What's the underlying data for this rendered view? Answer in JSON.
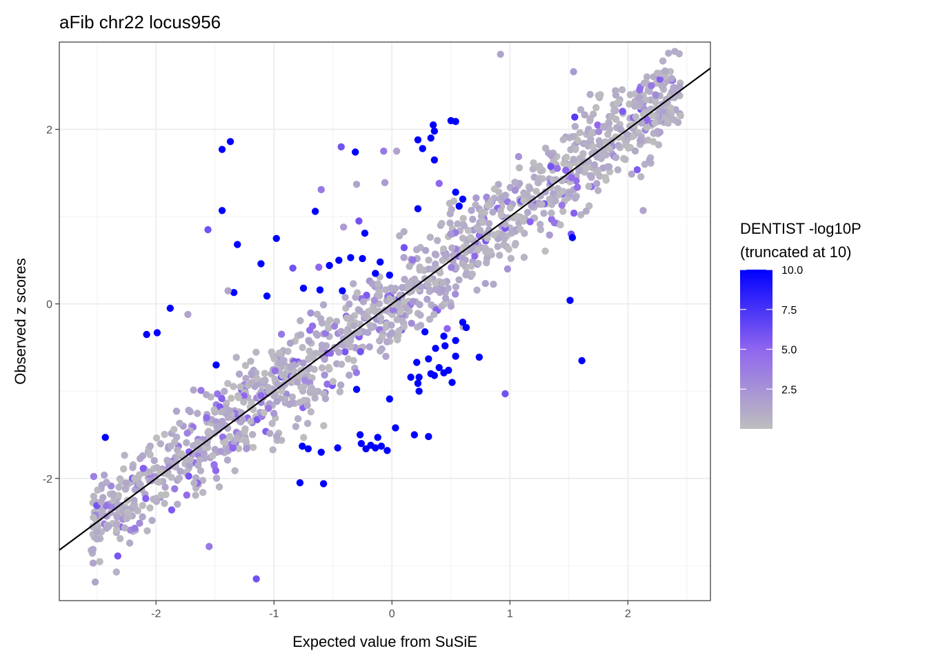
{
  "chart_data": {
    "type": "scatter",
    "title": "aFib chr22 locus956",
    "xlabel": "Expected value from SuSiE",
    "ylabel": "Observed z scores",
    "xlim": [
      -2.82,
      2.7
    ],
    "ylim": [
      -3.4,
      3.0
    ],
    "x_ticks": [
      -2,
      -1,
      0,
      1,
      2
    ],
    "x_tick_labels": [
      "-2",
      "-1",
      "0",
      "1",
      "2"
    ],
    "y_ticks": [
      -2,
      0,
      2
    ],
    "y_tick_labels": [
      "-2",
      "0",
      "2"
    ],
    "grid": true,
    "reference_line": {
      "intercept": 0,
      "slope": 1,
      "color": "#000000"
    },
    "legend": {
      "title_line1": "DENTIST -log10P",
      "title_line2": "(truncated at 10)",
      "labels": [
        "10.0",
        "7.5",
        "5.0",
        "2.5"
      ],
      "values": [
        10.0,
        7.5,
        5.0,
        2.5
      ],
      "range": [
        0,
        10
      ],
      "low_color": "#bebebe",
      "high_color": "#0000ff",
      "placement": "right"
    },
    "bulk_points": {
      "description": "dense cloud along the diagonal, mostly grey with low DENTIST values",
      "count": 1400,
      "x_range": [
        -2.55,
        2.45
      ],
      "slope": 1.0,
      "spread_sd": 0.26
    },
    "highlighted_points": [
      {
        "x": 0.92,
        "y": 2.86,
        "p": 1.5
      },
      {
        "x": 1.54,
        "y": 2.66,
        "p": 2.0
      },
      {
        "x": 2.2,
        "y": 2.5,
        "p": 4.0
      },
      {
        "x": 1.68,
        "y": 2.4,
        "p": 1.0
      },
      {
        "x": 1.55,
        "y": 2.14,
        "p": 7.0
      },
      {
        "x": 0.5,
        "y": 2.1,
        "p": 10.0
      },
      {
        "x": 0.54,
        "y": 2.09,
        "p": 10.0
      },
      {
        "x": 0.35,
        "y": 2.05,
        "p": 10.0
      },
      {
        "x": 0.36,
        "y": 1.98,
        "p": 10.0
      },
      {
        "x": 0.22,
        "y": 1.88,
        "p": 10.0
      },
      {
        "x": 0.33,
        "y": 1.9,
        "p": 10.0
      },
      {
        "x": 0.26,
        "y": 1.78,
        "p": 10.0
      },
      {
        "x": -1.37,
        "y": 1.86,
        "p": 10.0
      },
      {
        "x": -1.44,
        "y": 1.77,
        "p": 10.0
      },
      {
        "x": -0.43,
        "y": 1.8,
        "p": 6.0
      },
      {
        "x": -0.31,
        "y": 1.74,
        "p": 10.0
      },
      {
        "x": -0.07,
        "y": 1.75,
        "p": 4.0
      },
      {
        "x": 0.04,
        "y": 1.75,
        "p": 1.5
      },
      {
        "x": 0.36,
        "y": 1.65,
        "p": 10.0
      },
      {
        "x": 1.35,
        "y": 1.7,
        "p": 1.5
      },
      {
        "x": -0.06,
        "y": 1.39,
        "p": 2.0
      },
      {
        "x": -0.3,
        "y": 1.37,
        "p": 1.5
      },
      {
        "x": -0.6,
        "y": 1.31,
        "p": 4.0
      },
      {
        "x": 0.4,
        "y": 1.38,
        "p": 5.0
      },
      {
        "x": 0.54,
        "y": 1.28,
        "p": 10.0
      },
      {
        "x": 0.6,
        "y": 1.2,
        "p": 10.0
      },
      {
        "x": -1.44,
        "y": 1.07,
        "p": 10.0
      },
      {
        "x": -0.65,
        "y": 1.06,
        "p": 10.0
      },
      {
        "x": 0.22,
        "y": 1.09,
        "p": 10.0
      },
      {
        "x": 0.57,
        "y": 1.12,
        "p": 10.0
      },
      {
        "x": 2.13,
        "y": 1.07,
        "p": 1.5
      },
      {
        "x": -0.28,
        "y": 0.95,
        "p": 6.0
      },
      {
        "x": -0.41,
        "y": 0.88,
        "p": 2.0
      },
      {
        "x": -0.23,
        "y": 0.81,
        "p": 10.0
      },
      {
        "x": -1.56,
        "y": 0.85,
        "p": 6.0
      },
      {
        "x": 1.52,
        "y": 0.8,
        "p": 6.0
      },
      {
        "x": -0.98,
        "y": 0.75,
        "p": 10.0
      },
      {
        "x": -1.31,
        "y": 0.68,
        "p": 10.0
      },
      {
        "x": 1.53,
        "y": 0.76,
        "p": 10.0
      },
      {
        "x": -0.45,
        "y": 0.5,
        "p": 10.0
      },
      {
        "x": -0.35,
        "y": 0.53,
        "p": 10.0
      },
      {
        "x": -0.25,
        "y": 0.52,
        "p": 10.0
      },
      {
        "x": -0.53,
        "y": 0.44,
        "p": 10.0
      },
      {
        "x": -0.1,
        "y": 0.48,
        "p": 10.0
      },
      {
        "x": -0.14,
        "y": 0.35,
        "p": 10.0
      },
      {
        "x": -0.02,
        "y": 0.33,
        "p": 10.0
      },
      {
        "x": -1.11,
        "y": 0.46,
        "p": 10.0
      },
      {
        "x": -0.84,
        "y": 0.41,
        "p": 6.0
      },
      {
        "x": -0.62,
        "y": 0.42,
        "p": 5.0
      },
      {
        "x": -1.34,
        "y": 0.13,
        "p": 10.0
      },
      {
        "x": -1.39,
        "y": 0.15,
        "p": 1.5
      },
      {
        "x": -1.06,
        "y": 0.09,
        "p": 10.0
      },
      {
        "x": -0.75,
        "y": 0.18,
        "p": 10.0
      },
      {
        "x": -0.61,
        "y": 0.16,
        "p": 10.0
      },
      {
        "x": -0.42,
        "y": 0.15,
        "p": 10.0
      },
      {
        "x": 1.51,
        "y": 0.04,
        "p": 10.0
      },
      {
        "x": -1.88,
        "y": -0.05,
        "p": 10.0
      },
      {
        "x": -2.08,
        "y": -0.35,
        "p": 10.0
      },
      {
        "x": -1.99,
        "y": -0.33,
        "p": 10.0
      },
      {
        "x": -1.73,
        "y": -0.12,
        "p": 1.5
      },
      {
        "x": 0.6,
        "y": -0.21,
        "p": 10.0
      },
      {
        "x": 0.63,
        "y": -0.27,
        "p": 10.0
      },
      {
        "x": 0.44,
        "y": -0.37,
        "p": 10.0
      },
      {
        "x": 0.28,
        "y": -0.32,
        "p": 10.0
      },
      {
        "x": 0.54,
        "y": -0.42,
        "p": 10.0
      },
      {
        "x": 0.45,
        "y": -0.48,
        "p": 10.0
      },
      {
        "x": 0.37,
        "y": -0.51,
        "p": 10.0
      },
      {
        "x": 0.54,
        "y": -0.6,
        "p": 10.0
      },
      {
        "x": 0.74,
        "y": -0.61,
        "p": 10.0
      },
      {
        "x": 0.31,
        "y": -0.63,
        "p": 10.0
      },
      {
        "x": 0.4,
        "y": -0.73,
        "p": 10.0
      },
      {
        "x": 0.21,
        "y": -0.67,
        "p": 10.0
      },
      {
        "x": 0.48,
        "y": -0.76,
        "p": 10.0
      },
      {
        "x": 0.16,
        "y": -0.84,
        "p": 10.0
      },
      {
        "x": 0.23,
        "y": -0.84,
        "p": 10.0
      },
      {
        "x": 0.33,
        "y": -0.8,
        "p": 10.0
      },
      {
        "x": 0.44,
        "y": -0.79,
        "p": 10.0
      },
      {
        "x": 0.36,
        "y": -0.82,
        "p": 10.0
      },
      {
        "x": 0.51,
        "y": -0.9,
        "p": 10.0
      },
      {
        "x": 0.22,
        "y": -0.91,
        "p": 10.0
      },
      {
        "x": 0.23,
        "y": -1.0,
        "p": 10.0
      },
      {
        "x": -0.02,
        "y": -1.09,
        "p": 10.0
      },
      {
        "x": -0.3,
        "y": -0.98,
        "p": 10.0
      },
      {
        "x": 1.61,
        "y": -0.65,
        "p": 10.0
      },
      {
        "x": -1.49,
        "y": -0.7,
        "p": 10.0
      },
      {
        "x": 0.96,
        "y": -1.03,
        "p": 6.0
      },
      {
        "x": 0.03,
        "y": -1.42,
        "p": 10.0
      },
      {
        "x": -0.27,
        "y": -1.5,
        "p": 10.0
      },
      {
        "x": 0.19,
        "y": -1.5,
        "p": 10.0
      },
      {
        "x": 0.31,
        "y": -1.52,
        "p": 10.0
      },
      {
        "x": -0.12,
        "y": -1.53,
        "p": 10.0
      },
      {
        "x": -0.26,
        "y": -1.6,
        "p": 10.0
      },
      {
        "x": -0.18,
        "y": -1.62,
        "p": 10.0
      },
      {
        "x": -0.09,
        "y": -1.63,
        "p": 10.0
      },
      {
        "x": -0.22,
        "y": -1.66,
        "p": 10.0
      },
      {
        "x": -0.14,
        "y": -1.65,
        "p": 10.0
      },
      {
        "x": -0.04,
        "y": -1.68,
        "p": 10.0
      },
      {
        "x": -0.76,
        "y": -1.63,
        "p": 10.0
      },
      {
        "x": -0.71,
        "y": -1.66,
        "p": 10.0
      },
      {
        "x": -0.6,
        "y": -1.7,
        "p": 10.0
      },
      {
        "x": -0.46,
        "y": -1.65,
        "p": 10.0
      },
      {
        "x": -2.43,
        "y": -1.53,
        "p": 10.0
      },
      {
        "x": -0.78,
        "y": -2.05,
        "p": 10.0
      },
      {
        "x": -0.58,
        "y": -2.06,
        "p": 10.0
      },
      {
        "x": -1.55,
        "y": -2.78,
        "p": 4.0
      },
      {
        "x": -1.15,
        "y": -3.15,
        "p": 6.0
      }
    ]
  }
}
